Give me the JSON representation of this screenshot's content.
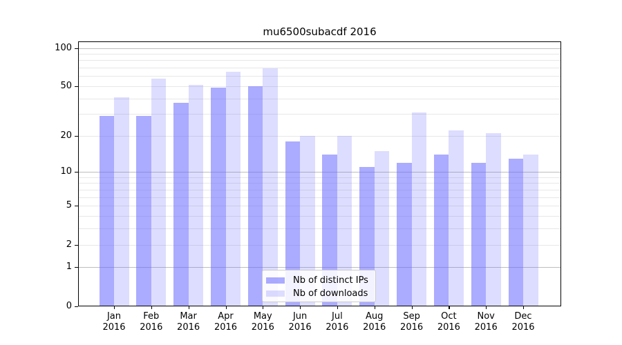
{
  "title": "mu6500subacdf 2016",
  "chart_data": {
    "type": "bar",
    "title": "mu6500subacdf 2016",
    "categories": [
      "Jan 2016",
      "Feb 2016",
      "Mar 2016",
      "Apr 2016",
      "May 2016",
      "Jun 2016",
      "Jul 2016",
      "Aug 2016",
      "Sep 2016",
      "Oct 2016",
      "Nov 2016",
      "Dec 2016"
    ],
    "month_labels": [
      "Jan",
      "Feb",
      "Mar",
      "Apr",
      "May",
      "Jun",
      "Jul",
      "Aug",
      "Sep",
      "Oct",
      "Nov",
      "Dec"
    ],
    "year_label": "2016",
    "series": [
      {
        "name": "Nb of distinct IPs",
        "color": "rgba(102,102,255,0.55)",
        "values": [
          29,
          29,
          37,
          49,
          50,
          18,
          14,
          11,
          12,
          14,
          12,
          13
        ]
      },
      {
        "name": "Nb of downloads",
        "color": "rgba(102,102,255,0.22)",
        "values": [
          41,
          57,
          51,
          65,
          69,
          20,
          20,
          15,
          31,
          22,
          21,
          14
        ]
      }
    ],
    "xlabel": "",
    "ylabel": "",
    "y_axis": {
      "scale": "log1p",
      "tick_labels": [
        0,
        1,
        2,
        5,
        10,
        20,
        50,
        100
      ],
      "major_gridlines": [
        1,
        10,
        100
      ],
      "minor_gridlines": [
        2,
        3,
        4,
        5,
        6,
        7,
        8,
        9,
        20,
        30,
        40,
        50,
        60,
        70,
        80,
        90
      ],
      "ylim": [
        0,
        114
      ]
    },
    "grid": true,
    "legend": {
      "position": "lower-center",
      "items": [
        "Nb of distinct IPs",
        "Nb of downloads"
      ]
    }
  },
  "colors": {
    "bar_base": "#6666ff",
    "distinct_ips_fill": "rgba(102,102,255,0.55)",
    "downloads_fill": "rgba(102,102,255,0.22)",
    "grid_major": "#bdbdbd",
    "grid_minor": "#e7e7e7",
    "spine": "#000000",
    "text": "#000000",
    "background": "#ffffff",
    "legend_border": "#cccccc"
  }
}
